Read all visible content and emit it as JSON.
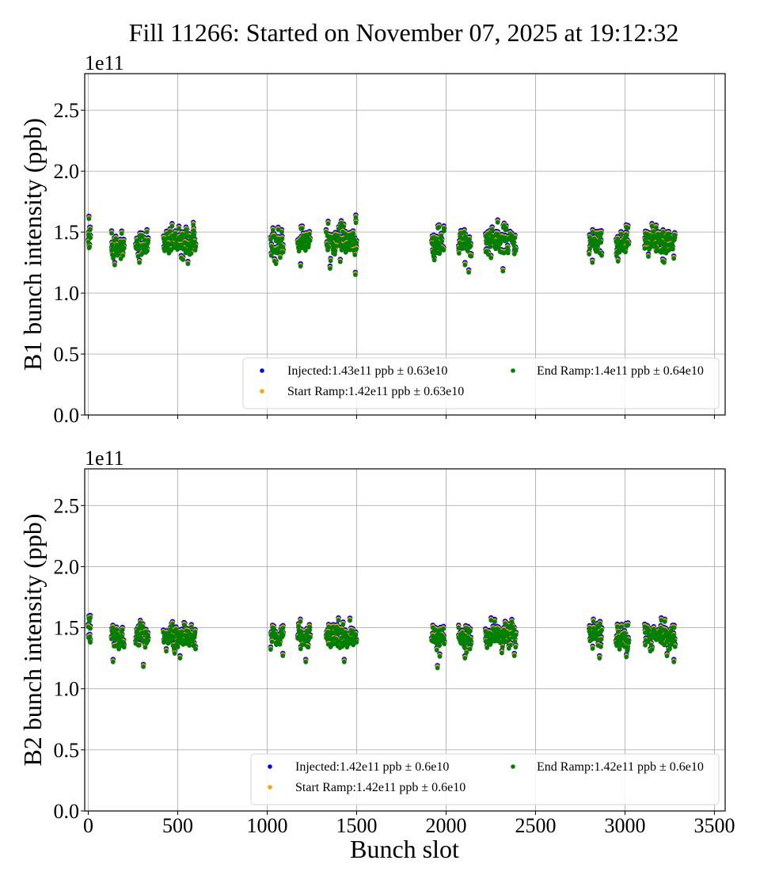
{
  "chart_data": {
    "title": "Fill 11266: Started on November 07, 2025 at 19:12:32",
    "type": "scatter",
    "shared_x": {
      "label": "Bunch slot",
      "lim": [
        -20,
        3560
      ],
      "ticks": [
        0,
        500,
        1000,
        1500,
        2000,
        2500,
        3000,
        3500
      ],
      "tick_labels": [
        "0",
        "500",
        "1000",
        "1500",
        "2000",
        "2500",
        "3000",
        "3500"
      ]
    },
    "series_colors": {
      "Injected": "#0000ff",
      "Start Ramp": "#ffa500",
      "End Ramp": "#008000"
    },
    "panels": [
      {
        "id": "B1",
        "ylabel": "B1 bunch intensity (ppb)",
        "y_multiplier": "1e11",
        "ylim": [
          0,
          2.8
        ],
        "yticks": [
          0.0,
          0.5,
          1.0,
          1.5,
          2.0,
          2.5
        ],
        "ytick_labels": [
          "0.0",
          "0.5",
          "1.0",
          "1.5",
          "2.0",
          "2.5"
        ],
        "grid": true,
        "legend_position": "lower-right",
        "legend": [
          {
            "series": "Injected",
            "label": "Injected:1.43e11 ppb ± 0.63e10"
          },
          {
            "series": "Start Ramp",
            "label": "Start Ramp:1.42e11 ppb ± 0.63e10"
          },
          {
            "series": "End Ramp",
            "label": "End Ramp:1.4e11 ppb ± 0.64e10"
          }
        ],
        "series_means": {
          "Injected": 1.43,
          "Start Ramp": 1.42,
          "End Ramp": 1.4
        },
        "series_std": {
          "Injected": 0.063,
          "Start Ramp": 0.063,
          "End Ramp": 0.064
        },
        "clusters": [
          {
            "x0": 0,
            "x1": 12,
            "mean": 1.49,
            "spread": 0.07,
            "top": 1.61,
            "bottom": 1.37
          },
          {
            "x0": 130,
            "x1": 200,
            "mean": 1.38,
            "spread": 0.06,
            "top": 1.49,
            "bottom": 1.23
          },
          {
            "x0": 265,
            "x1": 335,
            "mean": 1.4,
            "spread": 0.05,
            "top": 1.5,
            "bottom": 1.25
          },
          {
            "x0": 420,
            "x1": 600,
            "mean": 1.4,
            "spread": 0.06,
            "top": 1.56,
            "bottom": 1.24
          },
          {
            "x0": 1020,
            "x1": 1090,
            "mean": 1.4,
            "spread": 0.06,
            "top": 1.52,
            "bottom": 1.24
          },
          {
            "x0": 1170,
            "x1": 1240,
            "mean": 1.42,
            "spread": 0.05,
            "top": 1.53,
            "bottom": 1.22
          },
          {
            "x0": 1330,
            "x1": 1500,
            "mean": 1.41,
            "spread": 0.06,
            "top": 1.62,
            "bottom": 1.15
          },
          {
            "x0": 1920,
            "x1": 1990,
            "mean": 1.41,
            "spread": 0.06,
            "top": 1.54,
            "bottom": 1.27
          },
          {
            "x0": 2070,
            "x1": 2140,
            "mean": 1.4,
            "spread": 0.05,
            "top": 1.5,
            "bottom": 1.17
          },
          {
            "x0": 2220,
            "x1": 2390,
            "mean": 1.42,
            "spread": 0.05,
            "top": 1.58,
            "bottom": 1.18
          },
          {
            "x0": 2800,
            "x1": 2870,
            "mean": 1.41,
            "spread": 0.05,
            "top": 1.5,
            "bottom": 1.25
          },
          {
            "x0": 2950,
            "x1": 3020,
            "mean": 1.41,
            "spread": 0.05,
            "top": 1.54,
            "bottom": 1.26
          },
          {
            "x0": 3110,
            "x1": 3280,
            "mean": 1.41,
            "spread": 0.05,
            "top": 1.55,
            "bottom": 1.25
          }
        ]
      },
      {
        "id": "B2",
        "ylabel": "B2 bunch intensity (ppb)",
        "y_multiplier": "1e11",
        "ylim": [
          0,
          2.8
        ],
        "yticks": [
          0.0,
          0.5,
          1.0,
          1.5,
          2.0,
          2.5
        ],
        "ytick_labels": [
          "0.0",
          "0.5",
          "1.0",
          "1.5",
          "2.0",
          "2.5"
        ],
        "grid": true,
        "legend_position": "lower-right",
        "legend": [
          {
            "series": "Injected",
            "label": "Injected:1.42e11 ppb ± 0.6e10"
          },
          {
            "series": "Start Ramp",
            "label": "Start Ramp:1.42e11 ppb ± 0.6e10"
          },
          {
            "series": "End Ramp",
            "label": "End Ramp:1.42e11 ppb ± 0.6e10"
          }
        ],
        "series_means": {
          "Injected": 1.42,
          "Start Ramp": 1.42,
          "End Ramp": 1.42
        },
        "series_std": {
          "Injected": 0.06,
          "Start Ramp": 0.06,
          "End Ramp": 0.06
        },
        "clusters": [
          {
            "x0": 0,
            "x1": 12,
            "mean": 1.48,
            "spread": 0.06,
            "top": 1.58,
            "bottom": 1.38
          },
          {
            "x0": 130,
            "x1": 200,
            "mean": 1.41,
            "spread": 0.05,
            "top": 1.5,
            "bottom": 1.22
          },
          {
            "x0": 265,
            "x1": 335,
            "mean": 1.43,
            "spread": 0.05,
            "top": 1.54,
            "bottom": 1.18
          },
          {
            "x0": 420,
            "x1": 600,
            "mean": 1.41,
            "spread": 0.05,
            "top": 1.53,
            "bottom": 1.25
          },
          {
            "x0": 1020,
            "x1": 1090,
            "mean": 1.42,
            "spread": 0.05,
            "top": 1.5,
            "bottom": 1.27
          },
          {
            "x0": 1170,
            "x1": 1240,
            "mean": 1.43,
            "spread": 0.05,
            "top": 1.55,
            "bottom": 1.22
          },
          {
            "x0": 1330,
            "x1": 1500,
            "mean": 1.42,
            "spread": 0.05,
            "top": 1.56,
            "bottom": 1.22
          },
          {
            "x0": 1920,
            "x1": 1990,
            "mean": 1.41,
            "spread": 0.05,
            "top": 1.5,
            "bottom": 1.17
          },
          {
            "x0": 2070,
            "x1": 2140,
            "mean": 1.42,
            "spread": 0.05,
            "top": 1.5,
            "bottom": 1.25
          },
          {
            "x0": 2220,
            "x1": 2390,
            "mean": 1.43,
            "spread": 0.05,
            "top": 1.56,
            "bottom": 1.27
          },
          {
            "x0": 2800,
            "x1": 2870,
            "mean": 1.42,
            "spread": 0.05,
            "top": 1.55,
            "bottom": 1.25
          },
          {
            "x0": 2950,
            "x1": 3020,
            "mean": 1.42,
            "spread": 0.05,
            "top": 1.52,
            "bottom": 1.26
          },
          {
            "x0": 3110,
            "x1": 3280,
            "mean": 1.43,
            "spread": 0.05,
            "top": 1.56,
            "bottom": 1.22
          }
        ]
      }
    ]
  }
}
